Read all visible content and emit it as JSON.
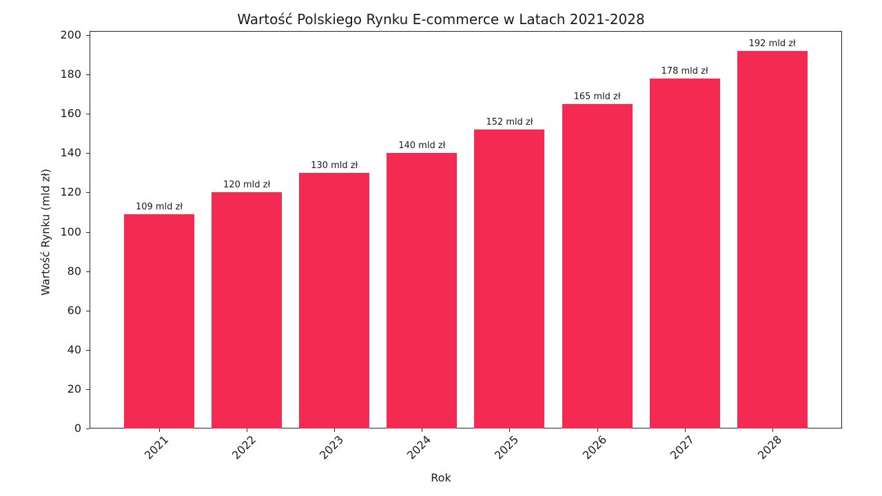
{
  "chart_data": {
    "type": "bar",
    "title": "Wartość Polskiego Rynku E-commerce w Latach 2021-2028",
    "xlabel": "Rok",
    "ylabel": "Wartość Rynku (mld zł)",
    "categories": [
      "2021",
      "2022",
      "2023",
      "2024",
      "2025",
      "2026",
      "2027",
      "2028"
    ],
    "values": [
      109,
      120,
      130,
      140,
      152,
      165,
      178,
      192
    ],
    "data_labels": [
      "109 mld zł",
      "120 mld zł",
      "130 mld zł",
      "140 mld zł",
      "152 mld zł",
      "165 mld zł",
      "178 mld zł",
      "192 mld zł"
    ],
    "ylim": [
      0,
      200
    ],
    "yticks": [
      0,
      20,
      40,
      60,
      80,
      100,
      120,
      140,
      160,
      180,
      200
    ],
    "grid": false,
    "legend": null,
    "bar_color": "#f42a52"
  }
}
